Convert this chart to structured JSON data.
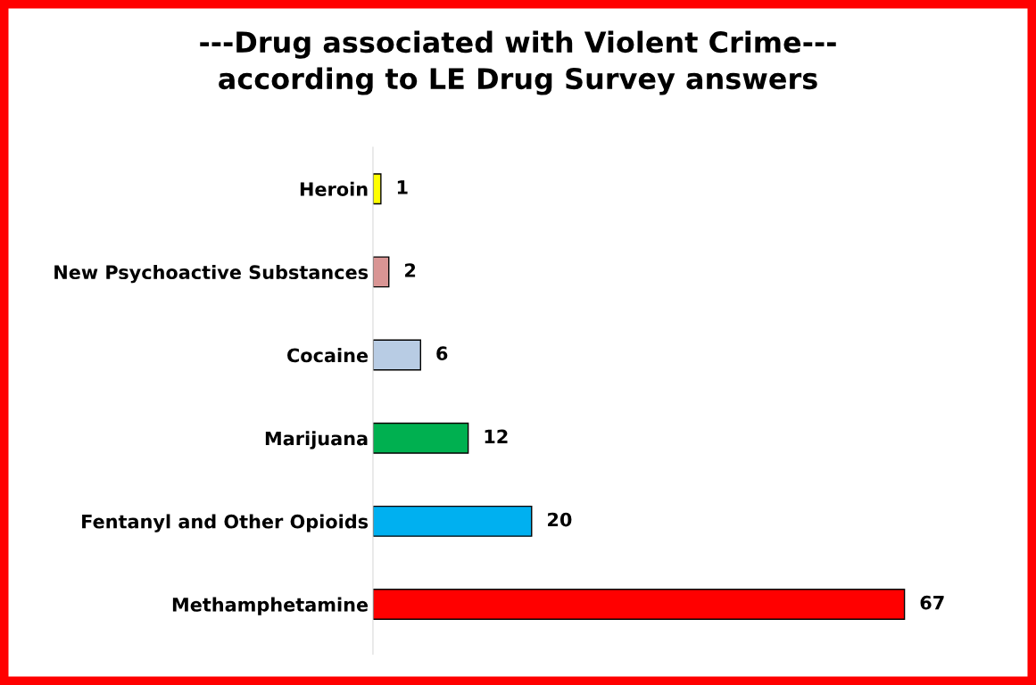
{
  "chart_data": {
    "type": "bar",
    "orientation": "horizontal",
    "title": "---Drug associated with Violent Crime---\naccording to LE Drug Survey answers",
    "categories": [
      "Heroin",
      "New Psychoactive Substances",
      "Cocaine",
      "Marijuana",
      "Fentanyl and Other Opioids",
      "Methamphetamine"
    ],
    "values": [
      1,
      2,
      6,
      12,
      20,
      67
    ],
    "colors": [
      "#ffff00",
      "#d99594",
      "#b8cce4",
      "#00b050",
      "#00b0f0",
      "#ff0000"
    ],
    "data_labels": true,
    "tick_labels": "y",
    "grid": false,
    "legend": false
  }
}
